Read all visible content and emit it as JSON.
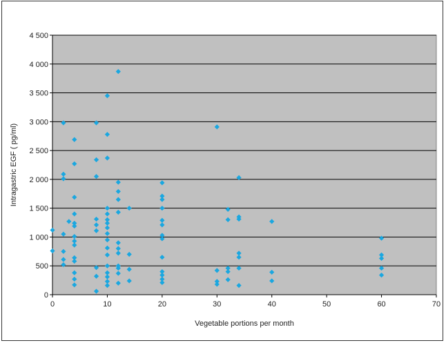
{
  "chart_data": {
    "type": "scatter",
    "xlabel": "Vegetable portions per month",
    "ylabel": "Intragastric EGF ( pg/ml)",
    "xlim": [
      0,
      70
    ],
    "ylim": [
      0,
      4500
    ],
    "x_ticks": [
      0,
      10,
      20,
      30,
      40,
      50,
      60,
      70
    ],
    "y_ticks": [
      0,
      500,
      1000,
      1500,
      2000,
      2500,
      3000,
      3500,
      4000,
      4500
    ],
    "x_tick_labels": [
      "0",
      "10",
      "20",
      "30",
      "40",
      "50",
      "60",
      "70"
    ],
    "y_tick_labels": [
      "0",
      "500",
      "1 000",
      "1 500",
      "2 000",
      "2 500",
      "3 000",
      "3 500",
      "4 000",
      "4 500"
    ],
    "grid": "horizontal",
    "plot_background": "#c0c0c0",
    "marker_color": "#1aa7e0",
    "marker": "diamond",
    "points": [
      [
        0,
        1120
      ],
      [
        0,
        760
      ],
      [
        2,
        2980
      ],
      [
        2,
        2090
      ],
      [
        2,
        2010
      ],
      [
        2,
        1050
      ],
      [
        2,
        750
      ],
      [
        2,
        610
      ],
      [
        2,
        520
      ],
      [
        3,
        1270
      ],
      [
        4,
        2690
      ],
      [
        4,
        2270
      ],
      [
        4,
        1690
      ],
      [
        4,
        1400
      ],
      [
        4,
        1240
      ],
      [
        4,
        1190
      ],
      [
        4,
        1010
      ],
      [
        4,
        930
      ],
      [
        4,
        860
      ],
      [
        4,
        640
      ],
      [
        4,
        580
      ],
      [
        4,
        380
      ],
      [
        4,
        270
      ],
      [
        4,
        170
      ],
      [
        8,
        2980
      ],
      [
        8,
        2340
      ],
      [
        8,
        2050
      ],
      [
        8,
        1310
      ],
      [
        8,
        1210
      ],
      [
        8,
        1110
      ],
      [
        8,
        470
      ],
      [
        8,
        320
      ],
      [
        8,
        60
      ],
      [
        10,
        3450
      ],
      [
        10,
        2780
      ],
      [
        10,
        2370
      ],
      [
        10,
        1500
      ],
      [
        10,
        1400
      ],
      [
        10,
        1300
      ],
      [
        10,
        1240
      ],
      [
        10,
        1160
      ],
      [
        10,
        1060
      ],
      [
        10,
        950
      ],
      [
        10,
        810
      ],
      [
        10,
        690
      ],
      [
        10,
        500
      ],
      [
        10,
        380
      ],
      [
        10,
        310
      ],
      [
        10,
        230
      ],
      [
        10,
        160
      ],
      [
        12,
        3870
      ],
      [
        12,
        1950
      ],
      [
        12,
        1790
      ],
      [
        12,
        1650
      ],
      [
        12,
        1430
      ],
      [
        12,
        900
      ],
      [
        12,
        800
      ],
      [
        12,
        720
      ],
      [
        12,
        500
      ],
      [
        12,
        460
      ],
      [
        12,
        370
      ],
      [
        12,
        200
      ],
      [
        14,
        1500
      ],
      [
        14,
        700
      ],
      [
        14,
        440
      ],
      [
        14,
        240
      ],
      [
        20,
        1940
      ],
      [
        20,
        1710
      ],
      [
        20,
        1650
      ],
      [
        20,
        1500
      ],
      [
        20,
        1290
      ],
      [
        20,
        1210
      ],
      [
        20,
        1030
      ],
      [
        20,
        970
      ],
      [
        20,
        650
      ],
      [
        20,
        400
      ],
      [
        20,
        340
      ],
      [
        20,
        270
      ],
      [
        20,
        210
      ],
      [
        30,
        2910
      ],
      [
        30,
        420
      ],
      [
        30,
        230
      ],
      [
        30,
        180
      ],
      [
        32,
        1480
      ],
      [
        32,
        1300
      ],
      [
        32,
        460
      ],
      [
        32,
        400
      ],
      [
        32,
        260
      ],
      [
        34,
        2030
      ],
      [
        34,
        1350
      ],
      [
        34,
        1310
      ],
      [
        34,
        720
      ],
      [
        34,
        650
      ],
      [
        34,
        460
      ],
      [
        34,
        160
      ],
      [
        40,
        1270
      ],
      [
        40,
        390
      ],
      [
        40,
        240
      ],
      [
        60,
        980
      ],
      [
        60,
        690
      ],
      [
        60,
        630
      ],
      [
        60,
        460
      ],
      [
        60,
        340
      ]
    ]
  }
}
